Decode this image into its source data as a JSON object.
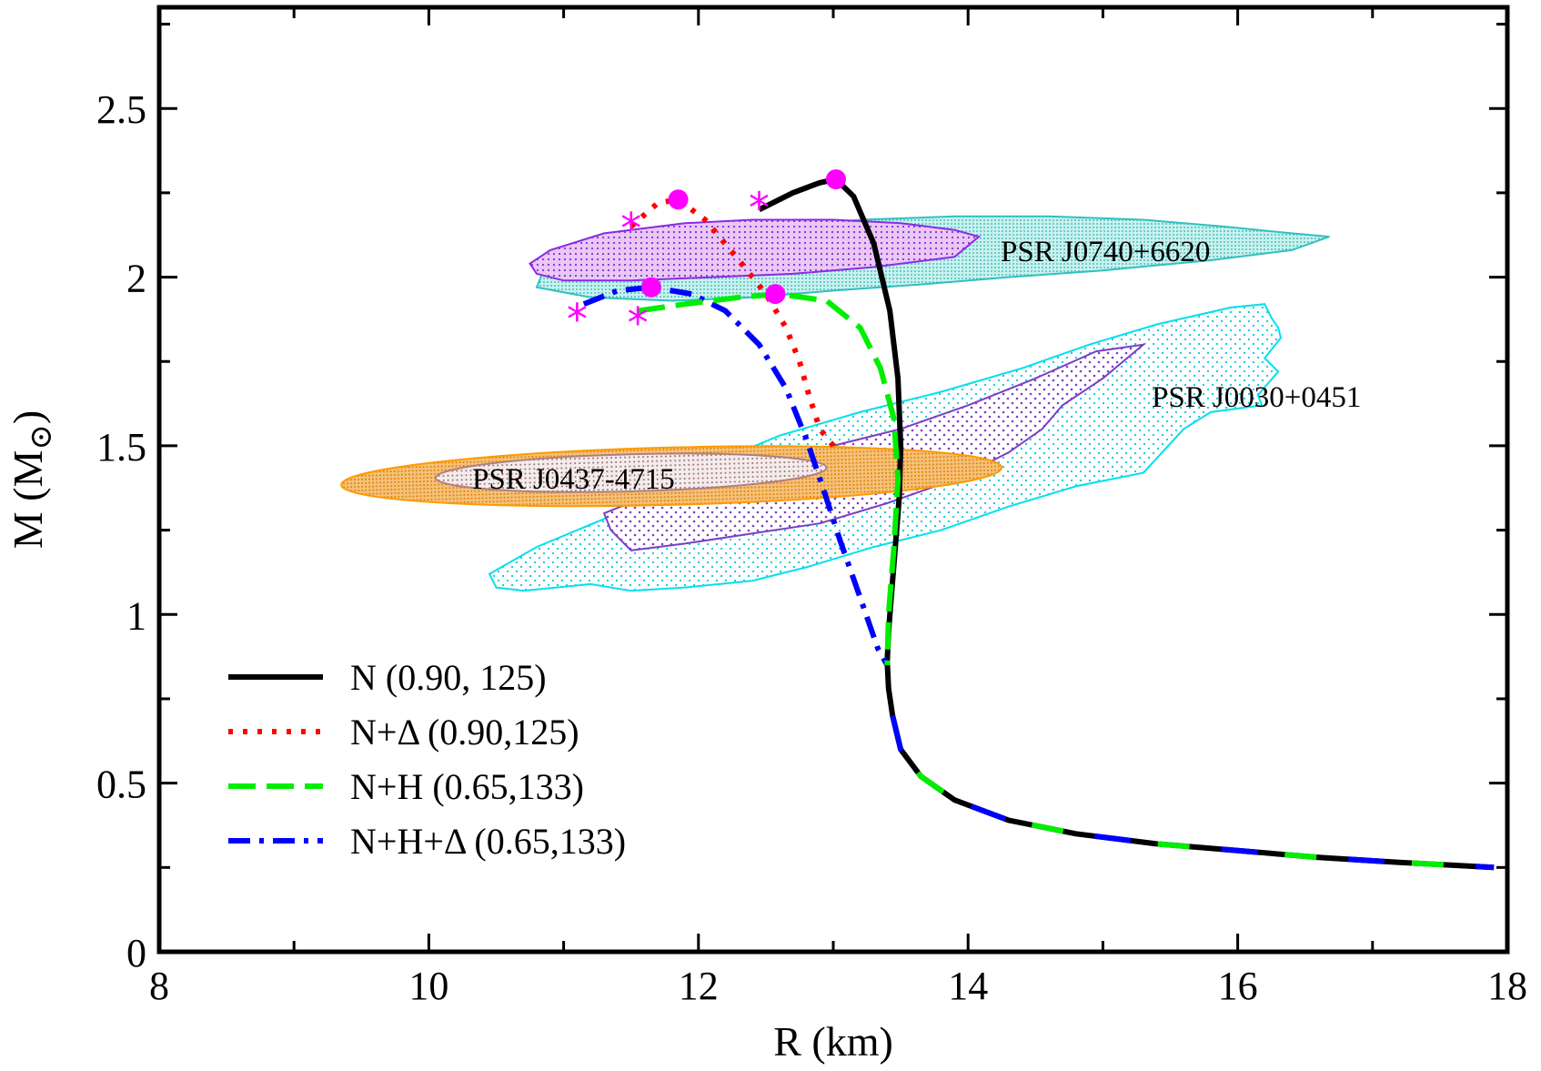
{
  "chart_data": {
    "type": "line",
    "title": "",
    "xlabel": "R (km)",
    "ylabel_main": "M (M",
    "ylabel_sub": "⊙",
    "ylabel_close": ")",
    "xlim": [
      8,
      18
    ],
    "ylim": [
      0,
      2.8
    ],
    "xticks": [
      8,
      10,
      12,
      14,
      16,
      18
    ],
    "xtick_labels": [
      "8",
      "10",
      "12",
      "14",
      "16",
      "18"
    ],
    "yticks": [
      0,
      0.5,
      1,
      1.5,
      2,
      2.5
    ],
    "ytick_labels": [
      "0",
      "0.5",
      "1",
      "1.5",
      "2",
      "2.5"
    ],
    "legend_position": "bottom-left",
    "colors": {
      "N": "#000000",
      "N_Delta": "#ff0000",
      "N_H": "#00ee00",
      "N_H_Delta": "#0000ff",
      "marker": "#ff00ff",
      "J0740_fill": "#5fcfc8",
      "J0740_edge": "#30c0c0",
      "J0740_inner_fill": "#b060d0",
      "J0740_inner_edge": "#8a2be2",
      "J0030_fill": "#bff5f5",
      "J0030_edge": "#00e0ee",
      "J0030_inner_fill": "#b99ad8",
      "J0030_inner_edge": "#7b3fc6",
      "J0437_outer_fill": "#f2b04a",
      "J0437_outer_edge": "#ff9900",
      "J0437_inner_fill": "#c8a8a8"
    },
    "series": [
      {
        "name": "N (0.90, 125)",
        "style": "solid",
        "color": "#000000",
        "x": [
          12.45,
          12.7,
          12.9,
          13.02,
          13.15,
          13.3,
          13.42,
          13.48,
          13.5,
          13.49,
          13.46,
          13.43,
          13.41,
          13.4,
          13.41,
          13.44,
          13.5,
          13.65,
          13.9,
          14.3,
          14.8,
          15.4,
          16.0,
          16.6,
          17.2,
          17.9
        ],
        "y": [
          2.2,
          2.25,
          2.28,
          2.29,
          2.24,
          2.1,
          1.9,
          1.7,
          1.5,
          1.35,
          1.2,
          1.05,
          0.95,
          0.86,
          0.78,
          0.7,
          0.6,
          0.52,
          0.45,
          0.39,
          0.35,
          0.32,
          0.3,
          0.28,
          0.265,
          0.25
        ]
      },
      {
        "name": "N+Δ (0.90,125)",
        "style": "dotted",
        "color": "#ff0000",
        "x": [
          11.5,
          11.7,
          11.85,
          12.05,
          12.3,
          12.5,
          12.65,
          12.75,
          12.82,
          12.9,
          13.0
        ],
        "y": [
          2.15,
          2.22,
          2.23,
          2.17,
          2.05,
          1.95,
          1.85,
          1.75,
          1.65,
          1.55,
          1.5
        ]
      },
      {
        "name": "N+H (0.65,133)",
        "style": "dashed",
        "color": "#00ee00",
        "x": [
          11.55,
          11.9,
          12.3,
          12.6,
          12.95,
          13.2,
          13.35,
          13.45,
          13.48,
          13.45,
          13.41,
          13.4
        ],
        "y": [
          1.9,
          1.92,
          1.94,
          1.95,
          1.93,
          1.85,
          1.73,
          1.58,
          1.4,
          1.2,
          1.0,
          0.85
        ]
      },
      {
        "name": "N+H+Δ (0.65,133)",
        "style": "dashdot",
        "color": "#0000ff",
        "x": [
          11.15,
          11.4,
          11.65,
          11.95,
          12.2,
          12.45,
          12.65,
          12.8,
          12.92,
          13.05,
          13.2,
          13.33,
          13.4
        ],
        "y": [
          1.92,
          1.96,
          1.97,
          1.95,
          1.9,
          1.8,
          1.67,
          1.52,
          1.38,
          1.22,
          1.05,
          0.9,
          0.85
        ]
      }
    ],
    "maximum_mass_points": [
      {
        "x": 13.02,
        "y": 2.29
      },
      {
        "x": 11.85,
        "y": 2.23
      },
      {
        "x": 12.57,
        "y": 1.95
      },
      {
        "x": 11.65,
        "y": 1.97
      }
    ],
    "star_points": [
      {
        "x": 12.45,
        "y": 2.21
      },
      {
        "x": 11.5,
        "y": 2.15
      },
      {
        "x": 11.55,
        "y": 1.87
      },
      {
        "x": 11.1,
        "y": 1.88
      }
    ],
    "regions": [
      {
        "name": "J0740-outer",
        "x": [
          10.85,
          11.3,
          12.0,
          12.6,
          13.2,
          13.9,
          14.6,
          15.3,
          15.9,
          16.4,
          16.68,
          16.4,
          15.8,
          15.0,
          14.3,
          13.7,
          13.0,
          12.4,
          11.8,
          11.2,
          10.8
        ],
        "y": [
          2.02,
          2.08,
          2.12,
          2.15,
          2.17,
          2.18,
          2.18,
          2.17,
          2.15,
          2.13,
          2.12,
          2.08,
          2.05,
          2.02,
          2.0,
          1.98,
          1.96,
          1.94,
          1.93,
          1.94,
          1.97
        ]
      },
      {
        "name": "J0740-inner",
        "x": [
          10.75,
          10.9,
          11.3,
          11.9,
          12.4,
          13.0,
          13.5,
          13.9,
          14.08,
          13.9,
          13.3,
          12.7,
          12.1,
          11.5,
          11.0,
          10.8
        ],
        "y": [
          2.04,
          2.08,
          2.13,
          2.16,
          2.17,
          2.17,
          2.16,
          2.14,
          2.12,
          2.06,
          2.03,
          2.01,
          2.0,
          1.99,
          1.99,
          2.01
        ]
      },
      {
        "name": "J0030-outer",
        "x": [
          10.45,
          10.8,
          11.4,
          12.0,
          12.6,
          13.2,
          13.8,
          14.4,
          14.9,
          15.4,
          15.95,
          16.2,
          16.25,
          16.3,
          16.32,
          16.2,
          16.3,
          16.15,
          16.18,
          15.8,
          15.6,
          15.3,
          14.8,
          14.3,
          13.8,
          13.3,
          12.8,
          12.4,
          11.9,
          11.5,
          11.2,
          10.7,
          10.5
        ],
        "y": [
          1.12,
          1.2,
          1.3,
          1.43,
          1.53,
          1.6,
          1.66,
          1.73,
          1.8,
          1.86,
          1.91,
          1.92,
          1.88,
          1.85,
          1.82,
          1.76,
          1.72,
          1.65,
          1.62,
          1.6,
          1.55,
          1.42,
          1.38,
          1.32,
          1.25,
          1.2,
          1.14,
          1.1,
          1.08,
          1.07,
          1.09,
          1.07,
          1.08
        ]
      },
      {
        "name": "J0030-inner",
        "x": [
          11.3,
          11.8,
          12.4,
          13.0,
          13.5,
          14.0,
          14.5,
          14.95,
          15.3,
          15.0,
          14.7,
          14.55,
          14.3,
          13.9,
          13.4,
          12.9,
          12.4,
          11.9,
          11.5,
          11.35
        ],
        "y": [
          1.3,
          1.38,
          1.44,
          1.5,
          1.55,
          1.62,
          1.7,
          1.78,
          1.8,
          1.7,
          1.62,
          1.55,
          1.48,
          1.4,
          1.33,
          1.27,
          1.24,
          1.21,
          1.19,
          1.25
        ]
      }
    ],
    "ellipses": [
      {
        "name": "J0437-outer",
        "cx": 11.8,
        "cy": 1.41,
        "rx": 2.45,
        "ry": 0.085,
        "angle_deg": -1.5
      },
      {
        "name": "J0437-inner",
        "cx": 11.5,
        "cy": 1.42,
        "rx": 1.45,
        "ry": 0.055,
        "angle_deg": -1.5
      }
    ],
    "labels": {
      "J0740": "PSR J0740+6620",
      "J0030": "PSR J0030+0451",
      "J0437": "PSR J0437-4715"
    }
  }
}
